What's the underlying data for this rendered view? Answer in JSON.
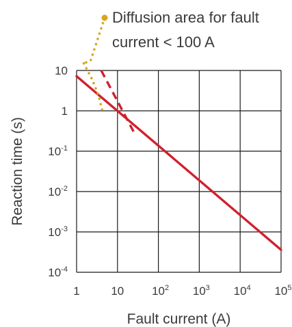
{
  "chart_data": {
    "type": "line",
    "x_scale": "log",
    "y_scale": "log",
    "xlim": [
      1,
      100000
    ],
    "ylim": [
      0.0001,
      10
    ],
    "grid": true,
    "xlabel": "Fault current (A)",
    "ylabel": "Reaction time (s)",
    "x_ticks": [
      {
        "base": "1",
        "exp": ""
      },
      {
        "base": "10",
        "exp": ""
      },
      {
        "base": "10",
        "exp": "2"
      },
      {
        "base": "10",
        "exp": "3"
      },
      {
        "base": "10",
        "exp": "4"
      },
      {
        "base": "10",
        "exp": "5"
      }
    ],
    "y_ticks": [
      {
        "base": "10",
        "exp": ""
      },
      {
        "base": "1",
        "exp": ""
      },
      {
        "base": "10",
        "exp": "-1"
      },
      {
        "base": "10",
        "exp": "-2"
      },
      {
        "base": "10",
        "exp": "-3"
      },
      {
        "base": "10",
        "exp": "-4"
      }
    ],
    "series": [
      {
        "style": "solid",
        "color": "#d0202e",
        "points": [
          [
            1,
            7.2
          ],
          [
            100000,
            0.00036
          ]
        ]
      },
      {
        "style": "dashed",
        "color": "#d0202e",
        "points": [
          [
            4,
            10
          ],
          [
            25,
            0.3
          ]
        ]
      },
      {
        "style": "dotted",
        "color": "#d9a521",
        "points": [
          [
            1.5,
            15
          ],
          [
            2.4,
            6
          ],
          [
            3.4,
            2.5
          ],
          [
            4.4,
            0.9
          ]
        ]
      }
    ],
    "annotation": {
      "lines": [
        "Diffusion area for fault",
        "current < 100 A"
      ],
      "marker_color": "#d9a521"
    }
  }
}
